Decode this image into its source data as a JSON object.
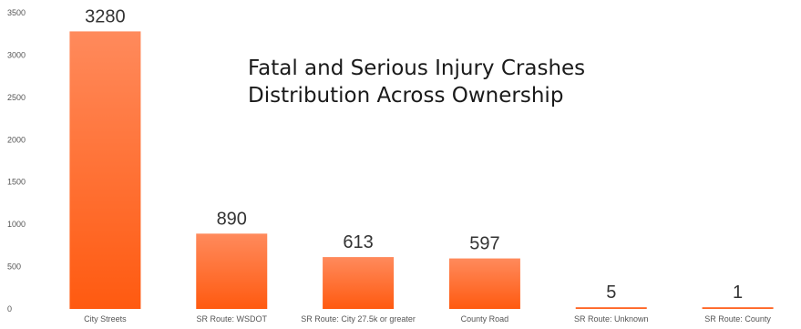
{
  "chart_data": {
    "type": "bar",
    "title_lines": [
      "Fatal and Serious Injury Crashes",
      "Distribution Across Ownership"
    ],
    "xlabel": "",
    "ylabel": "",
    "categories": [
      "City Streets",
      "SR Route: WSDOT",
      "SR Route: City 27.5k or greater",
      "County Road",
      "SR Route: Unknown",
      "SR Route: County"
    ],
    "values": [
      3280,
      890,
      613,
      597,
      5,
      1
    ],
    "data_labels": [
      "3280",
      "890",
      "613",
      "597",
      "5",
      "1"
    ],
    "ylim": [
      0,
      3500
    ],
    "yticks": [
      0,
      500,
      1000,
      1500,
      2000,
      2500,
      3000,
      3500
    ],
    "grid": false,
    "legend": "none",
    "colors": {
      "bar_top": "#ff8a5c",
      "bar_bottom": "#ff5a10",
      "text": "#333333",
      "tick_text": "#555555"
    }
  }
}
